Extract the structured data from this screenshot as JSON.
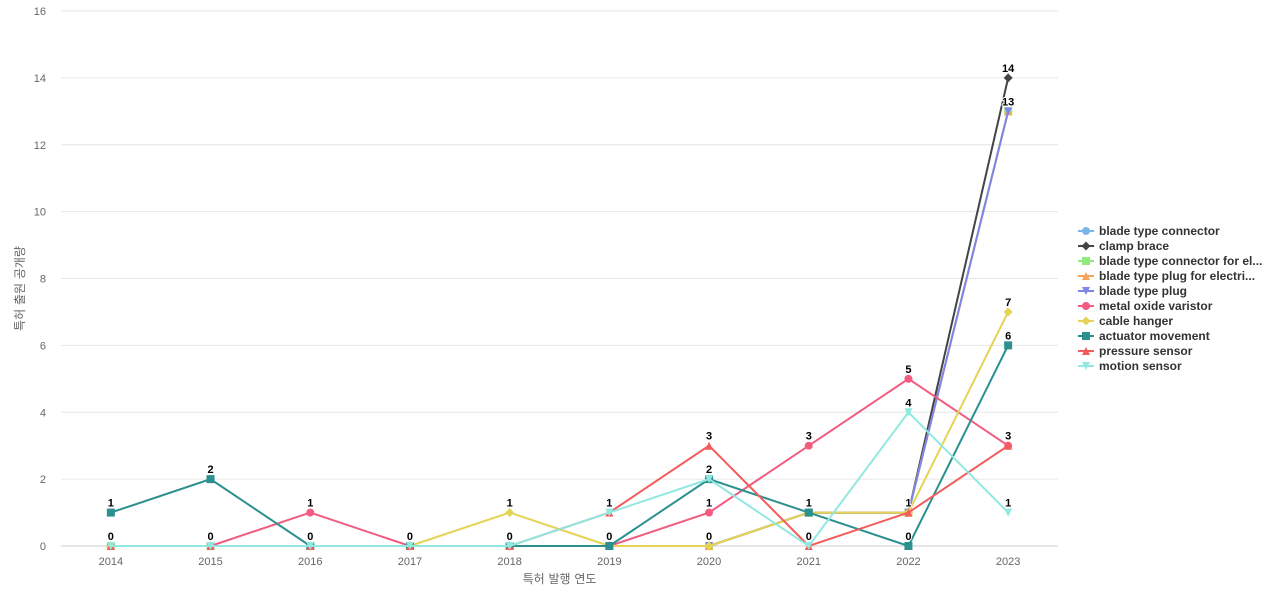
{
  "chart_data": {
    "type": "line",
    "xlabel": "특허 발행 연도",
    "ylabel": "특허 출원 공개량",
    "ylim": [
      0,
      16
    ],
    "yticks": [
      0,
      2,
      4,
      6,
      8,
      10,
      12,
      14,
      16
    ],
    "categories": [
      "2014",
      "2015",
      "2016",
      "2017",
      "2018",
      "2019",
      "2020",
      "2021",
      "2022",
      "2023"
    ],
    "grid": "horizontal",
    "legend_position": "right",
    "series": [
      {
        "name": "blade type connector",
        "color": "#7cb5ec",
        "marker": "circle",
        "values": [
          0,
          0,
          0,
          0,
          0,
          0,
          0,
          1,
          1,
          13
        ]
      },
      {
        "name": "clamp brace",
        "color": "#434348",
        "marker": "diamond",
        "values": [
          0,
          0,
          0,
          0,
          0,
          0,
          0,
          1,
          1,
          14
        ]
      },
      {
        "name": "blade type connector for el...",
        "color": "#90ed7d",
        "marker": "square",
        "values": [
          0,
          0,
          0,
          0,
          0,
          0,
          0,
          1,
          1,
          13
        ]
      },
      {
        "name": "blade type plug for electri...",
        "color": "#f7a35c",
        "marker": "triangle",
        "values": [
          0,
          0,
          0,
          0,
          0,
          0,
          0,
          1,
          1,
          13
        ]
      },
      {
        "name": "blade type plug",
        "color": "#8085e9",
        "marker": "triangle-down",
        "values": [
          0,
          0,
          0,
          0,
          0,
          0,
          0,
          1,
          1,
          13
        ]
      },
      {
        "name": "metal oxide varistor",
        "color": "#f15c80",
        "marker": "circle",
        "values": [
          0,
          0,
          1,
          0,
          0,
          0,
          1,
          3,
          5,
          3
        ]
      },
      {
        "name": "cable hanger",
        "color": "#e4d354",
        "marker": "diamond",
        "values": [
          0,
          0,
          0,
          0,
          1,
          0,
          0,
          1,
          1,
          7
        ]
      },
      {
        "name": "actuator movement",
        "color": "#2b908f",
        "marker": "square",
        "values": [
          1,
          2,
          0,
          0,
          0,
          0,
          2,
          1,
          0,
          6
        ]
      },
      {
        "name": "pressure sensor",
        "color": "#f45b5b",
        "marker": "triangle",
        "values": [
          0,
          0,
          0,
          0,
          0,
          1,
          3,
          0,
          1,
          3
        ]
      },
      {
        "name": "motion sensor",
        "color": "#91e8e1",
        "marker": "triangle-down",
        "values": [
          0,
          0,
          0,
          0,
          0,
          1,
          2,
          0,
          4,
          1
        ]
      }
    ],
    "data_labels": [
      {
        "category": "2014",
        "value": 1,
        "text": "1"
      },
      {
        "category": "2014",
        "value": 0,
        "text": "0"
      },
      {
        "category": "2015",
        "value": 2,
        "text": "2"
      },
      {
        "category": "2015",
        "value": 0,
        "text": "0"
      },
      {
        "category": "2016",
        "value": 1,
        "text": "1"
      },
      {
        "category": "2016",
        "value": 0,
        "text": "0"
      },
      {
        "category": "2017",
        "value": 0,
        "text": "0"
      },
      {
        "category": "2018",
        "value": 1,
        "text": "1"
      },
      {
        "category": "2018",
        "value": 0,
        "text": "0"
      },
      {
        "category": "2019",
        "value": 1,
        "text": "1"
      },
      {
        "category": "2019",
        "value": 0,
        "text": "0"
      },
      {
        "category": "2020",
        "value": 3,
        "text": "3"
      },
      {
        "category": "2020",
        "value": 2,
        "text": "2"
      },
      {
        "category": "2020",
        "value": 1,
        "text": "1"
      },
      {
        "category": "2020",
        "value": 0,
        "text": "0"
      },
      {
        "category": "2021",
        "value": 3,
        "text": "3"
      },
      {
        "category": "2021",
        "value": 1,
        "text": "1"
      },
      {
        "category": "2021",
        "value": 0,
        "text": "0"
      },
      {
        "category": "2022",
        "value": 5,
        "text": "5"
      },
      {
        "category": "2022",
        "value": 4,
        "text": "4"
      },
      {
        "category": "2022",
        "value": 1,
        "text": "1"
      },
      {
        "category": "2022",
        "value": 0,
        "text": "0"
      },
      {
        "category": "2023",
        "value": 14,
        "text": "14"
      },
      {
        "category": "2023",
        "value": 13,
        "text": "13"
      },
      {
        "category": "2023",
        "value": 7,
        "text": "7"
      },
      {
        "category": "2023",
        "value": 6,
        "text": "6"
      },
      {
        "category": "2023",
        "value": 3,
        "text": "3"
      },
      {
        "category": "2023",
        "value": 1,
        "text": "1"
      }
    ]
  }
}
